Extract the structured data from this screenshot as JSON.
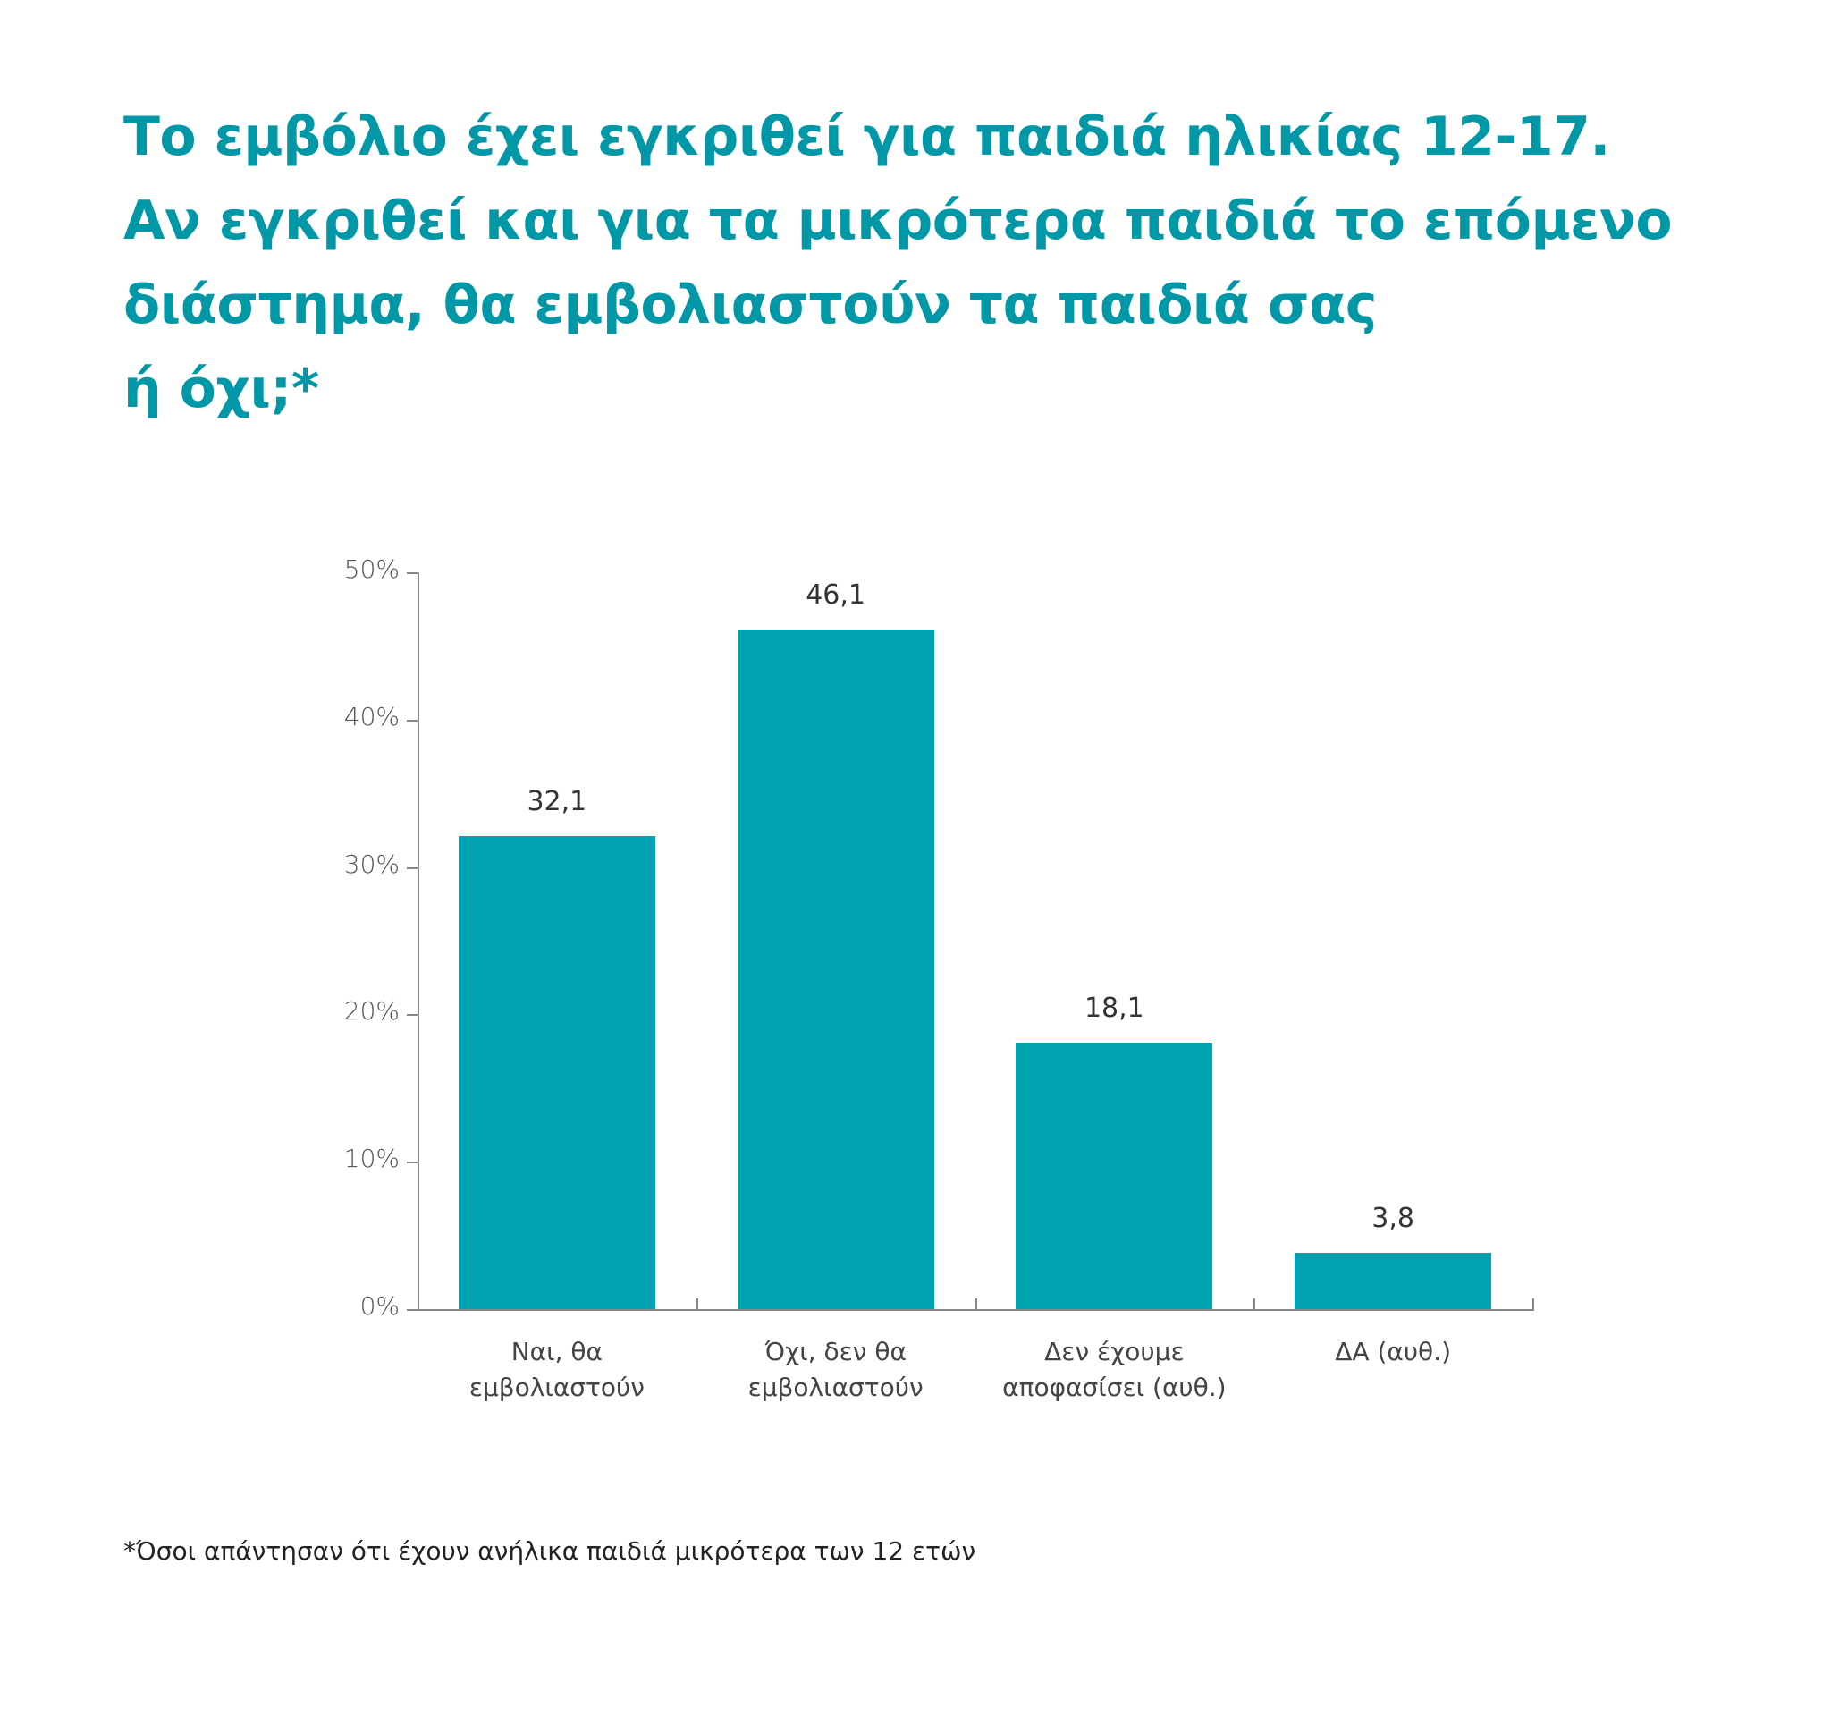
{
  "title_lines": [
    "Το εμβόλιο έχει εγκριθεί για παιδιά ηλικίας 12-17.",
    "Αν εγκριθεί και για τα μικρότερα παιδιά το επόμενο",
    "διάστημα, θα εμβολιαστούν τα παιδιά σας",
    "ή όχι;*"
  ],
  "footnote": "*Όσοι απάντησαν ότι έχουν ανήλικα παιδιά μικρότερα των 12 ετών",
  "colors": {
    "title": "#0097a7",
    "bar": "#00a3b0",
    "axis": "#888888"
  },
  "y_ticks": [
    "50%",
    "40%",
    "30%",
    "20%",
    "10%",
    "0%"
  ],
  "bars": [
    {
      "label_lines": [
        "Ναι, θα",
        "εμβολιαστούν"
      ],
      "value_label": "32,1"
    },
    {
      "label_lines": [
        "Όχι, δεν θα",
        "εμβολιαστούν"
      ],
      "value_label": "46,1"
    },
    {
      "label_lines": [
        "Δεν έχουμε",
        "αποφασίσει (αυθ.)"
      ],
      "value_label": "18,1"
    },
    {
      "label_lines": [
        "ΔΑ (αυθ.)"
      ],
      "value_label": "3,8"
    }
  ],
  "chart_data": {
    "type": "bar",
    "title": "Το εμβόλιο έχει εγκριθεί για παιδιά ηλικίας 12-17. Αν εγκριθεί και για τα μικρότερα παιδιά το επόμενο διάστημα, θα εμβολιαστούν τα παιδιά σας ή όχι;*",
    "categories": [
      "Ναι, θα εμβολιαστούν",
      "Όχι, δεν θα εμβολιαστούν",
      "Δεν έχουμε αποφασίσει (αυθ.)",
      "ΔΑ (αυθ.)"
    ],
    "values": [
      32.1,
      46.1,
      18.1,
      3.8
    ],
    "xlabel": "",
    "ylabel": "",
    "ylim": [
      0,
      50
    ],
    "yticks": [
      0,
      10,
      20,
      30,
      40,
      50
    ],
    "ytick_format": "%",
    "grid": false,
    "legend": null,
    "data_labels": true,
    "note": "*Όσοι απάντησαν ότι έχουν ανήλικα παιδιά μικρότερα των 12 ετών"
  }
}
